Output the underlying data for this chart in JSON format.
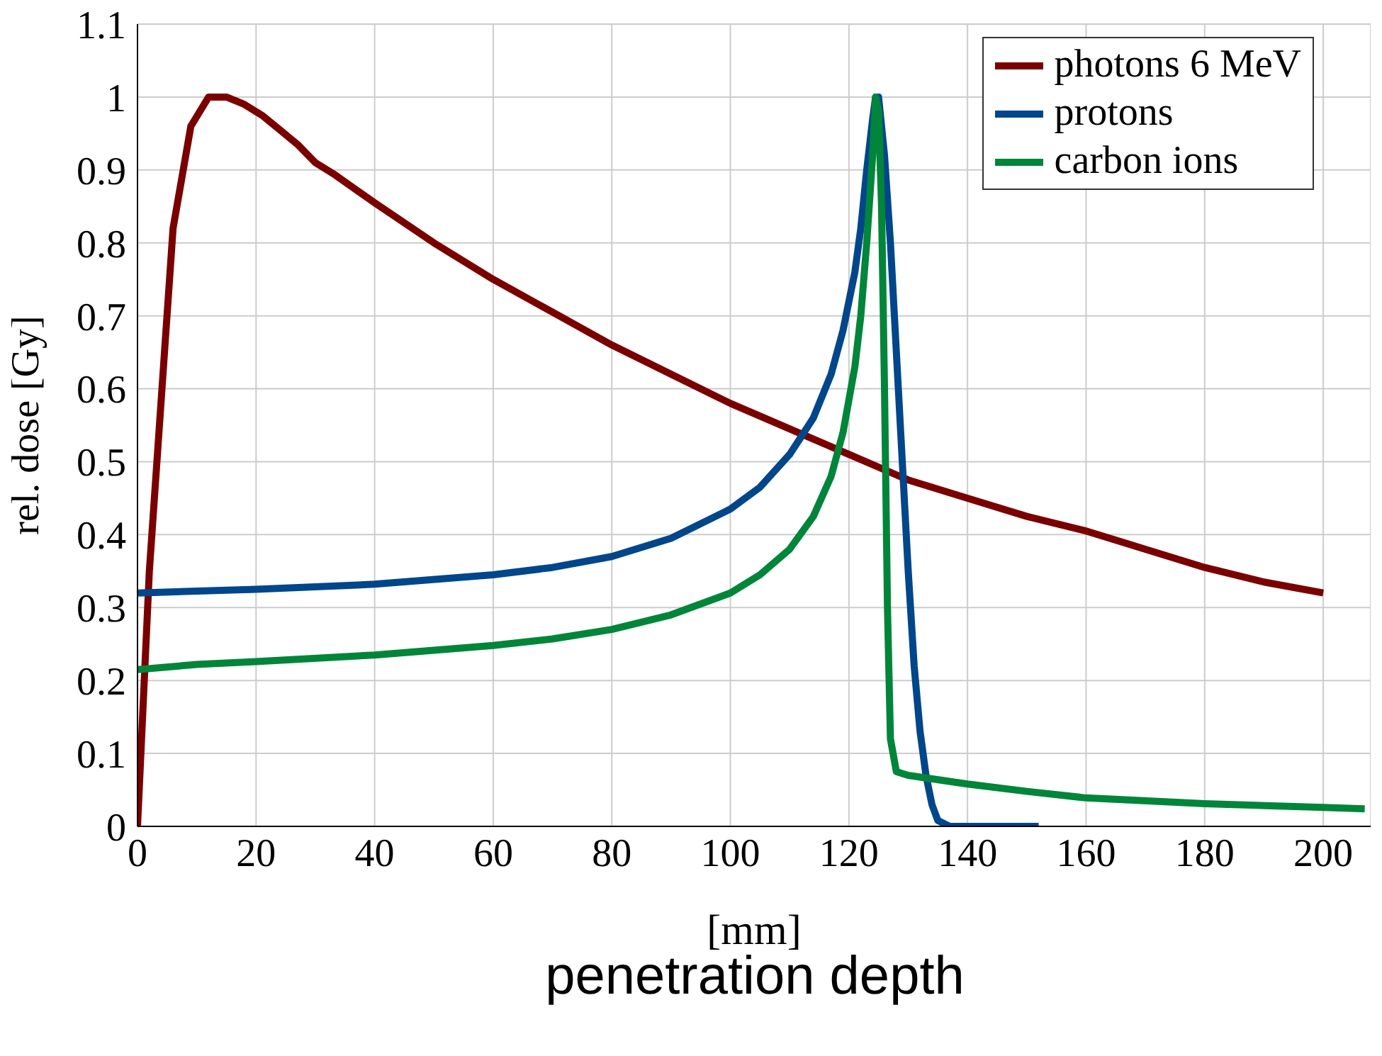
{
  "chart_data": {
    "type": "line",
    "xlabel": "[mm]",
    "ylabel": "rel. dose [Gy]",
    "annotations": [
      "penetration depth"
    ],
    "xlim": [
      0,
      208
    ],
    "xticks": [
      0,
      20,
      40,
      60,
      80,
      100,
      120,
      140,
      160,
      180,
      200
    ],
    "ylim": [
      0,
      1.1
    ],
    "yticks": [
      0,
      0.1,
      0.2,
      0.3,
      0.4,
      0.5,
      0.6,
      0.7,
      0.8,
      0.9,
      1,
      1.1
    ],
    "grid": true,
    "legend": "top right",
    "series": [
      {
        "name": "photons 6 MeV",
        "color": "#7a0000",
        "x": [
          0,
          2,
          6,
          9,
          12,
          15,
          18,
          21,
          24,
          27,
          30,
          33,
          40,
          50,
          60,
          70,
          80,
          90,
          100,
          110,
          120,
          130,
          140,
          150,
          160,
          170,
          180,
          190,
          200
        ],
        "values": [
          0,
          0.35,
          0.82,
          0.96,
          1.0,
          1.0,
          0.99,
          0.975,
          0.955,
          0.935,
          0.91,
          0.895,
          0.855,
          0.8,
          0.75,
          0.705,
          0.66,
          0.62,
          0.58,
          0.545,
          0.51,
          0.475,
          0.45,
          0.425,
          0.405,
          0.38,
          0.355,
          0.335,
          0.32
        ]
      },
      {
        "name": "protons",
        "color": "#00468b",
        "x": [
          0,
          20,
          40,
          60,
          70,
          80,
          90,
          100,
          105,
          110,
          114,
          117,
          119,
          121,
          122,
          123,
          124,
          124.5,
          125,
          126,
          127,
          128,
          129,
          130,
          131,
          132,
          133,
          134,
          135,
          137,
          152
        ],
        "values": [
          0.32,
          0.325,
          0.332,
          0.345,
          0.355,
          0.37,
          0.395,
          0.435,
          0.465,
          0.51,
          0.56,
          0.62,
          0.68,
          0.76,
          0.82,
          0.9,
          0.97,
          1.0,
          1.0,
          0.92,
          0.8,
          0.65,
          0.5,
          0.35,
          0.22,
          0.13,
          0.07,
          0.03,
          0.008,
          0,
          0
        ]
      },
      {
        "name": "carbon ions",
        "color": "#00853a",
        "x": [
          0,
          10,
          20,
          40,
          60,
          70,
          80,
          90,
          100,
          105,
          110,
          114,
          117,
          119,
          121,
          122,
          123,
          124,
          124.5,
          125,
          125.5,
          126,
          126.5,
          127,
          128,
          130,
          140,
          150,
          160,
          180,
          200,
          207
        ],
        "values": [
          0.215,
          0.222,
          0.226,
          0.235,
          0.248,
          0.257,
          0.27,
          0.29,
          0.32,
          0.345,
          0.38,
          0.425,
          0.48,
          0.54,
          0.63,
          0.7,
          0.8,
          0.92,
          1.0,
          0.98,
          0.85,
          0.6,
          0.3,
          0.12,
          0.075,
          0.07,
          0.058,
          0.048,
          0.039,
          0.031,
          0.026,
          0.024
        ]
      }
    ]
  }
}
